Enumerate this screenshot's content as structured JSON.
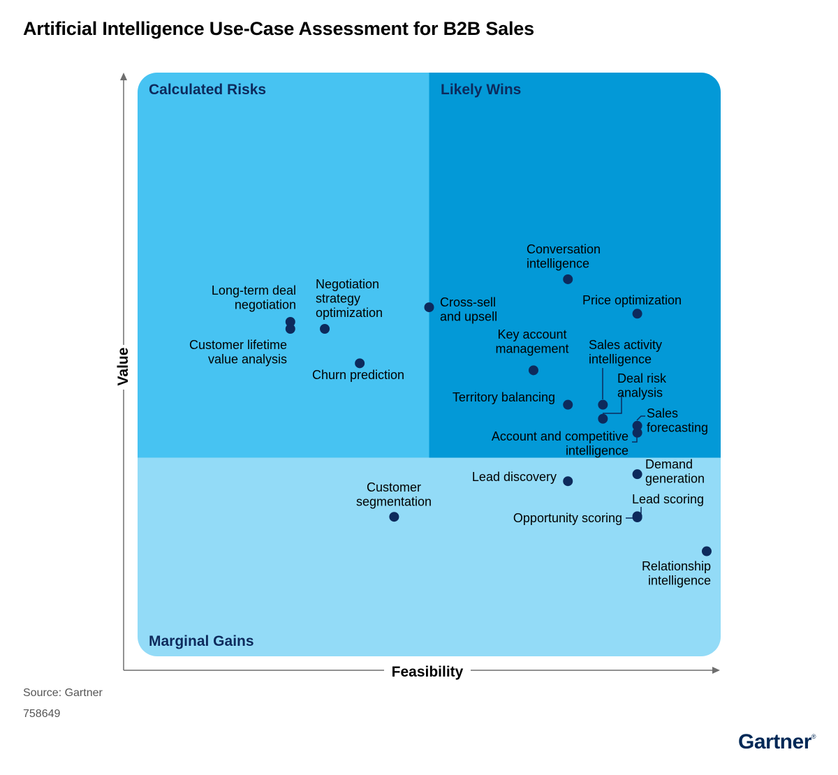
{
  "title": "Artificial Intelligence Use-Case Assessment for B2B Sales",
  "source": "Source: Gartner",
  "doc_id": "758649",
  "logo": "Gartner",
  "colors": {
    "calculated_risks": "#47C3F2",
    "likely_wins": "#0399D7",
    "marginal_gains": "#93DBF7",
    "quadrant_label": "#0D2A5C",
    "dot": "#0D2A5C",
    "axis": "#6E6E6E"
  },
  "chart_data": {
    "type": "scatter",
    "title": "Artificial Intelligence Use-Case Assessment for B2B Sales",
    "xlabel": "Feasibility",
    "ylabel": "Value",
    "xlim": [
      0,
      100
    ],
    "ylim": [
      0,
      100
    ],
    "grid": false,
    "legend": "none",
    "quadrants": [
      {
        "label": "Calculated Risks",
        "x_range": [
          0,
          50
        ],
        "y_range": [
          34,
          100
        ],
        "color": "#47C3F2"
      },
      {
        "label": "Likely Wins",
        "x_range": [
          50,
          100
        ],
        "y_range": [
          34,
          100
        ],
        "color": "#0399D7"
      },
      {
        "label": "Marginal Gains",
        "x_range": [
          0,
          100
        ],
        "y_range": [
          0,
          34
        ],
        "color": "#93DBF7"
      }
    ],
    "points": [
      {
        "label": "Conversation intelligence",
        "x": 73.8,
        "y": 64.6
      },
      {
        "label": "Price optimization",
        "x": 85.7,
        "y": 58.7
      },
      {
        "label": "Cross-sell and upsell",
        "x": 50.0,
        "y": 59.8
      },
      {
        "label": "Long-term deal negotiation",
        "x": 26.2,
        "y": 57.3
      },
      {
        "label": "Customer lifetime value analysis",
        "x": 26.2,
        "y": 56.1
      },
      {
        "label": "Negotiation strategy optimization",
        "x": 32.1,
        "y": 56.1
      },
      {
        "label": "Churn prediction",
        "x": 38.1,
        "y": 50.2
      },
      {
        "label": "Key account management",
        "x": 67.9,
        "y": 49.0
      },
      {
        "label": "Sales activity intelligence",
        "x": 79.8,
        "y": 43.1
      },
      {
        "label": "Territory balancing",
        "x": 73.8,
        "y": 43.1
      },
      {
        "label": "Deal risk analysis",
        "x": 79.8,
        "y": 40.7
      },
      {
        "label": "Sales forecasting",
        "x": 85.7,
        "y": 39.5
      },
      {
        "label": "Account and competitive intelligence",
        "x": 85.7,
        "y": 38.3
      },
      {
        "label": "Demand generation",
        "x": 85.7,
        "y": 31.2
      },
      {
        "label": "Lead discovery",
        "x": 73.8,
        "y": 30.0
      },
      {
        "label": "Customer segmentation",
        "x": 44.0,
        "y": 23.9
      },
      {
        "label": "Lead scoring",
        "x": 85.7,
        "y": 24.0
      },
      {
        "label": "Opportunity scoring",
        "x": 85.7,
        "y": 23.8
      },
      {
        "label": "Relationship intelligence",
        "x": 97.6,
        "y": 18.0
      }
    ]
  }
}
